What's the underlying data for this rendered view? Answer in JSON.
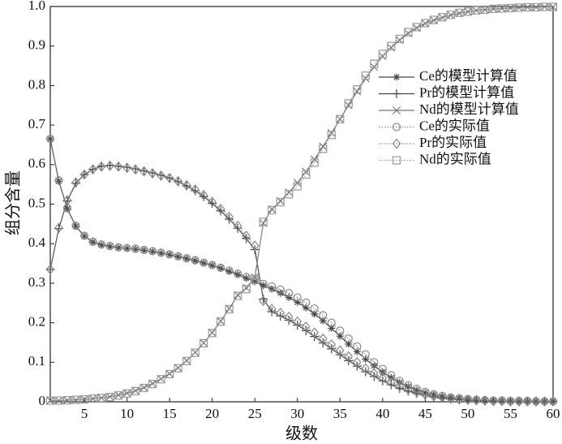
{
  "chart_data": {
    "type": "line",
    "xlabel": "级数",
    "ylabel": "组分含量",
    "x": [
      1,
      2,
      3,
      4,
      5,
      6,
      7,
      8,
      9,
      10,
      11,
      12,
      13,
      14,
      15,
      16,
      17,
      18,
      19,
      20,
      21,
      22,
      23,
      24,
      25,
      26,
      27,
      28,
      29,
      30,
      31,
      32,
      33,
      34,
      35,
      36,
      37,
      38,
      39,
      40,
      41,
      42,
      43,
      44,
      45,
      46,
      47,
      48,
      49,
      50,
      51,
      52,
      53,
      54,
      55,
      56,
      57,
      58,
      59,
      60
    ],
    "xlim": [
      1,
      60
    ],
    "xticks": [
      5,
      10,
      15,
      20,
      25,
      30,
      35,
      40,
      45,
      50,
      55,
      60
    ],
    "ylim": [
      0,
      1
    ],
    "yticks": [
      0,
      0.1,
      0.2,
      0.3,
      0.4,
      0.5,
      0.6,
      0.7,
      0.8,
      0.9,
      {
        "value": 1,
        "label": "1.0"
      }
    ],
    "legend": "upper right",
    "series": [
      {
        "name": "Ce的模型计算值",
        "color": "#444444",
        "marker": "star",
        "line_style": "solid",
        "values": [
          0.665,
          0.558,
          0.488,
          0.444,
          0.419,
          0.404,
          0.397,
          0.393,
          0.39,
          0.388,
          0.386,
          0.383,
          0.38,
          0.376,
          0.372,
          0.367,
          0.362,
          0.357,
          0.351,
          0.345,
          0.338,
          0.33,
          0.322,
          0.313,
          0.304,
          0.294,
          0.285,
          0.275,
          0.264,
          0.252,
          0.238,
          0.222,
          0.205,
          0.186,
          0.166,
          0.146,
          0.127,
          0.108,
          0.091,
          0.075,
          0.061,
          0.049,
          0.039,
          0.03,
          0.023,
          0.018,
          0.013,
          0.01,
          0.008,
          0.006,
          0.004,
          0.003,
          0.003,
          0.002,
          0.002,
          0.001,
          0.001,
          0.001,
          0.001,
          0.001
        ]
      },
      {
        "name": "Pr的模型计算值",
        "color": "#444444",
        "marker": "plus",
        "line_style": "solid",
        "values": [
          0.335,
          0.438,
          0.508,
          0.553,
          0.575,
          0.588,
          0.596,
          0.598,
          0.596,
          0.593,
          0.589,
          0.584,
          0.579,
          0.573,
          0.566,
          0.557,
          0.546,
          0.534,
          0.519,
          0.502,
          0.483,
          0.462,
          0.439,
          0.413,
          0.385,
          0.26,
          0.228,
          0.217,
          0.206,
          0.194,
          0.18,
          0.165,
          0.149,
          0.134,
          0.119,
          0.104,
          0.09,
          0.076,
          0.064,
          0.053,
          0.043,
          0.034,
          0.027,
          0.021,
          0.016,
          0.012,
          0.009,
          0.007,
          0.005,
          0.004,
          0.003,
          0.002,
          0.002,
          0.001,
          0.001,
          0.001,
          0.001,
          0.001,
          0.001,
          0.001
        ]
      },
      {
        "name": "Nd的模型计算值",
        "color": "#777777",
        "marker": "x",
        "line_style": "solid",
        "values": [
          0.003,
          0.003,
          0.004,
          0.005,
          0.006,
          0.008,
          0.01,
          0.013,
          0.017,
          0.022,
          0.028,
          0.036,
          0.046,
          0.058,
          0.071,
          0.086,
          0.104,
          0.125,
          0.149,
          0.175,
          0.204,
          0.236,
          0.27,
          0.288,
          0.315,
          0.452,
          0.487,
          0.508,
          0.53,
          0.554,
          0.582,
          0.613,
          0.646,
          0.68,
          0.715,
          0.75,
          0.785,
          0.818,
          0.847,
          0.874,
          0.896,
          0.915,
          0.932,
          0.946,
          0.957,
          0.965,
          0.972,
          0.978,
          0.983,
          0.987,
          0.99,
          0.992,
          0.994,
          0.995,
          0.996,
          0.997,
          0.998,
          0.998,
          0.999,
          0.999
        ]
      },
      {
        "name": "Ce的实际值",
        "color": "#888888",
        "marker": "circle",
        "line_style": "dotted",
        "values": [
          0.665,
          0.56,
          0.49,
          0.445,
          0.42,
          0.405,
          0.398,
          0.394,
          0.391,
          0.389,
          0.387,
          0.384,
          0.381,
          0.377,
          0.373,
          0.368,
          0.363,
          0.358,
          0.352,
          0.346,
          0.339,
          0.332,
          0.324,
          0.316,
          0.308,
          0.298,
          0.292,
          0.284,
          0.275,
          0.264,
          0.251,
          0.236,
          0.219,
          0.2,
          0.18,
          0.16,
          0.14,
          0.12,
          0.1,
          0.083,
          0.067,
          0.053,
          0.042,
          0.033,
          0.025,
          0.019,
          0.015,
          0.011,
          0.009,
          0.007,
          0.005,
          0.004,
          0.003,
          0.003,
          0.002,
          0.002,
          0.002,
          0.001,
          0.001,
          0.001
        ]
      },
      {
        "name": "Pr的实际值",
        "color": "#888888",
        "marker": "diamond",
        "line_style": "dotted",
        "values": [
          0.335,
          0.44,
          0.51,
          0.555,
          0.575,
          0.588,
          0.595,
          0.597,
          0.595,
          0.592,
          0.588,
          0.583,
          0.578,
          0.572,
          0.566,
          0.558,
          0.548,
          0.537,
          0.523,
          0.506,
          0.488,
          0.468,
          0.445,
          0.42,
          0.395,
          0.255,
          0.235,
          0.225,
          0.215,
          0.203,
          0.19,
          0.175,
          0.16,
          0.145,
          0.13,
          0.115,
          0.1,
          0.085,
          0.072,
          0.06,
          0.049,
          0.039,
          0.031,
          0.024,
          0.018,
          0.014,
          0.011,
          0.008,
          0.006,
          0.005,
          0.004,
          0.003,
          0.002,
          0.002,
          0.001,
          0.001,
          0.001,
          0.001,
          0.001,
          0.001
        ]
      },
      {
        "name": "Nd的实际值",
        "color": "#999999",
        "marker": "square",
        "line_style": "dotted",
        "values": [
          0.003,
          0.003,
          0.004,
          0.005,
          0.006,
          0.008,
          0.01,
          0.012,
          0.016,
          0.021,
          0.027,
          0.035,
          0.045,
          0.057,
          0.07,
          0.085,
          0.103,
          0.124,
          0.148,
          0.174,
          0.203,
          0.234,
          0.268,
          0.285,
          0.31,
          0.455,
          0.485,
          0.505,
          0.525,
          0.545,
          0.575,
          0.605,
          0.64,
          0.675,
          0.715,
          0.755,
          0.79,
          0.825,
          0.855,
          0.88,
          0.9,
          0.918,
          0.935,
          0.948,
          0.958,
          0.966,
          0.973,
          0.979,
          0.984,
          0.987,
          0.99,
          0.992,
          0.994,
          0.995,
          0.996,
          0.997,
          0.998,
          0.998,
          0.999,
          0.999
        ]
      }
    ]
  }
}
